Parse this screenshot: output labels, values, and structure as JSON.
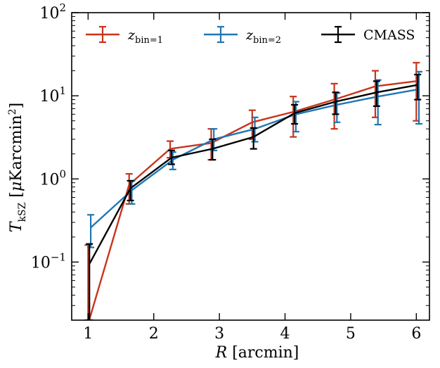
{
  "chart_data": {
    "type": "line",
    "xlabel": "R [arcmin]",
    "ylabel": "T_kSZ [μKarcmin²]",
    "xlim": [
      0.75,
      6.2
    ],
    "ylim": [
      0.02,
      100
    ],
    "yscale": "log",
    "grid": false,
    "legend_position": "top",
    "x": [
      1,
      1.625,
      2.25,
      2.875,
      3.5,
      4.125,
      4.75,
      5.375,
      6
    ],
    "x_ticks": [
      1,
      2,
      3,
      4,
      5,
      6
    ],
    "y_ticks": [
      {
        "value": 0.1,
        "mantissa": "10",
        "exp": "−1"
      },
      {
        "value": 1,
        "mantissa": "10",
        "exp": "0"
      },
      {
        "value": 10,
        "mantissa": "10",
        "exp": "1"
      },
      {
        "value": 100,
        "mantissa": "10",
        "exp": "2"
      }
    ],
    "series": [
      {
        "name": "z_bin=1",
        "name_main": "z",
        "name_sub": "bin=1",
        "color": "#c8341c",
        "x_offset": 0,
        "values": [
          0.018,
          0.85,
          2.3,
          2.7,
          4.8,
          6.4,
          9.0,
          13.0,
          15.0
        ],
        "lower": [
          0.005,
          0.5,
          1.8,
          1.7,
          3.0,
          3.2,
          4.0,
          5.5,
          5.0
        ],
        "upper": [
          0.16,
          1.15,
          2.85,
          4.0,
          6.7,
          9.8,
          14.0,
          20.0,
          25.0
        ]
      },
      {
        "name": "z_bin=2",
        "name_main": "z",
        "name_sub": "bin=2",
        "color": "#1f77b4",
        "x_offset": 0.04,
        "values": [
          0.26,
          0.73,
          1.7,
          3.0,
          4.0,
          6.0,
          7.8,
          9.8,
          12.0
        ],
        "lower": [
          0.15,
          0.5,
          1.3,
          2.2,
          2.8,
          3.7,
          4.8,
          4.5,
          4.6
        ],
        "upper": [
          0.37,
          0.95,
          2.1,
          4.0,
          5.5,
          8.5,
          10.8,
          15.5,
          19.5
        ]
      },
      {
        "name": "CMASS",
        "name_main": "CMASS",
        "name_sub": "",
        "color": "#000000",
        "x_offset": 0.02,
        "values": [
          0.095,
          0.77,
          1.8,
          2.3,
          3.2,
          6.2,
          8.5,
          11.0,
          13.5
        ],
        "lower": [
          0.02,
          0.55,
          1.5,
          1.7,
          2.3,
          4.6,
          6.0,
          7.5,
          9.0
        ],
        "upper": [
          0.165,
          0.95,
          2.2,
          3.0,
          4.1,
          7.8,
          11.0,
          15.0,
          18.0
        ]
      }
    ]
  }
}
